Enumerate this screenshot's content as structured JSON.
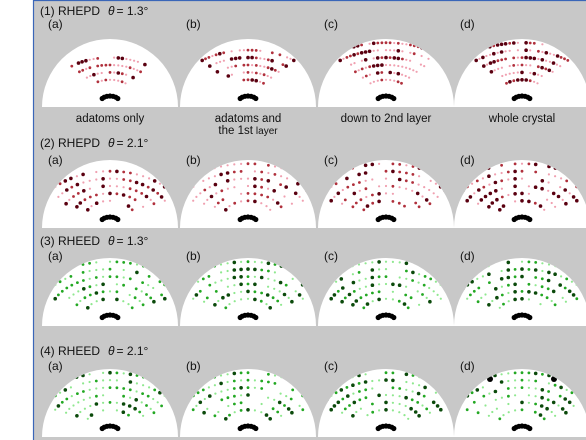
{
  "rows": [
    {
      "label": "(1) RHEPD",
      "symbol": "θ",
      "angle": "= 1.3°",
      "panels": [
        "(a)",
        "(b)",
        "(c)",
        "(d)"
      ]
    },
    {
      "label": "(2) RHEPD",
      "symbol": "θ",
      "angle": "= 2.1°",
      "panels": [
        "(a)",
        "(b)",
        "(c)",
        "(d)"
      ]
    },
    {
      "label": "(3) RHEED",
      "symbol": "θ",
      "angle": "= 1.3°",
      "panels": [
        "(a)",
        "(b)",
        "(c)",
        "(d)"
      ]
    },
    {
      "label": "(4) RHEED",
      "symbol": "θ",
      "angle": "= 2.1°",
      "panels": [
        "(a)",
        "(b)",
        "(c)",
        "(d)"
      ]
    }
  ],
  "captions": [
    {
      "lines": [
        "adatoms only"
      ]
    },
    {
      "lines": [
        "adatoms and",
        "the 1st"
      ],
      "small": "layer"
    },
    {
      "lines": [
        "down to 2nd layer"
      ]
    },
    {
      "lines": [
        "whole crystal"
      ]
    }
  ]
}
